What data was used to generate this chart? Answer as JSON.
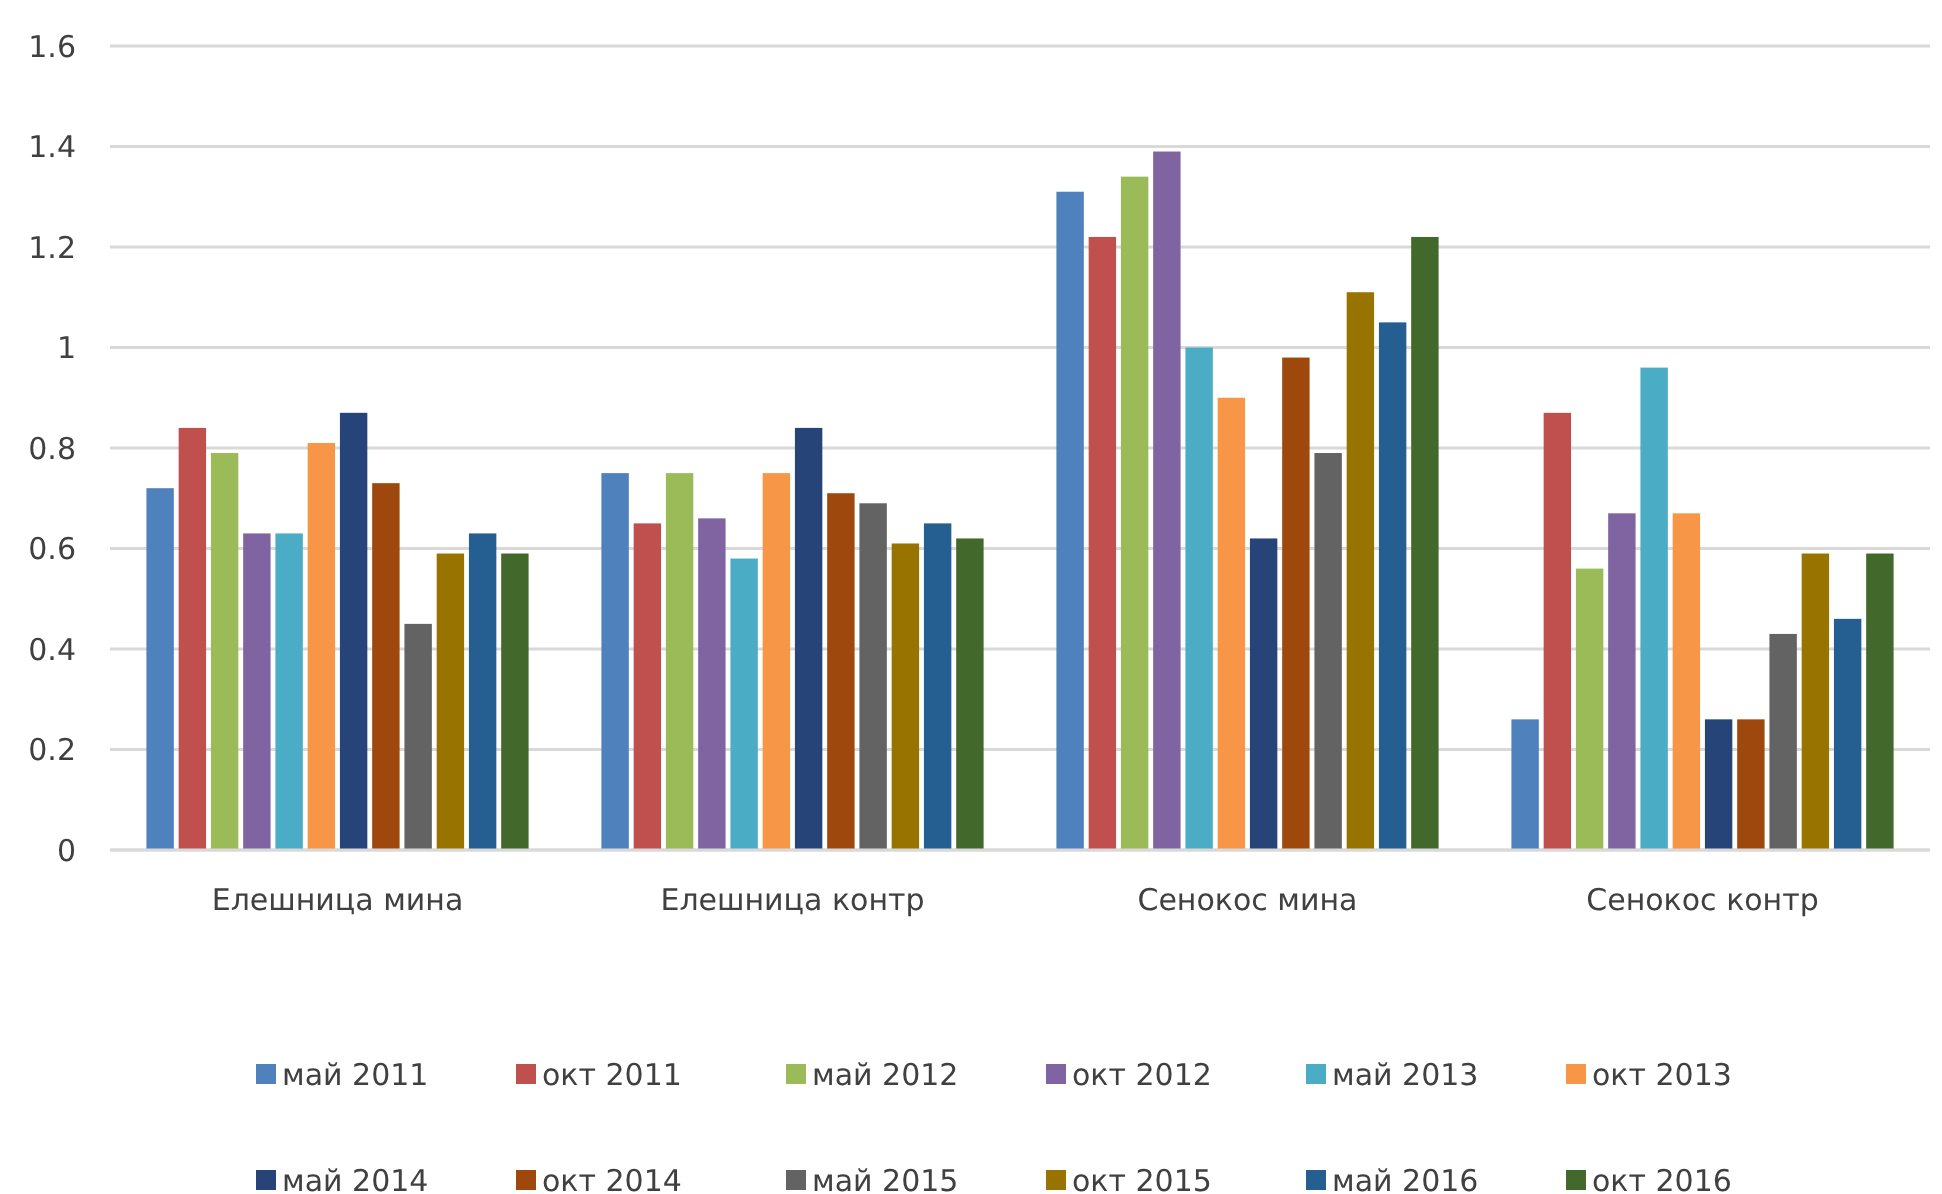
{
  "chart_data": {
    "type": "bar",
    "categories": [
      "Елешница мина",
      "Елешница контр",
      "Сенокос мина",
      "Сенокос контр"
    ],
    "series": [
      {
        "name": "май 2011",
        "color": "#4f81bd",
        "values": [
          0.72,
          0.75,
          1.31,
          0.26
        ]
      },
      {
        "name": "окт 2011",
        "color": "#c0504d",
        "values": [
          0.84,
          0.65,
          1.22,
          0.87
        ]
      },
      {
        "name": "май 2012",
        "color": "#9bbb59",
        "values": [
          0.79,
          0.75,
          1.34,
          0.56
        ]
      },
      {
        "name": "окт 2012",
        "color": "#8064a2",
        "values": [
          0.63,
          0.66,
          1.39,
          0.67
        ]
      },
      {
        "name": "май 2013",
        "color": "#4bacc6",
        "values": [
          0.63,
          0.58,
          1.0,
          0.96
        ]
      },
      {
        "name": "окт 2013",
        "color": "#f79646",
        "values": [
          0.81,
          0.75,
          0.9,
          0.67
        ]
      },
      {
        "name": "май 2014",
        "color": "#264478",
        "values": [
          0.87,
          0.84,
          0.62,
          0.26
        ]
      },
      {
        "name": "окт 2014",
        "color": "#9e480e",
        "values": [
          0.73,
          0.71,
          0.98,
          0.26
        ]
      },
      {
        "name": "май 2015",
        "color": "#636363",
        "values": [
          0.45,
          0.69,
          0.79,
          0.43
        ]
      },
      {
        "name": "окт 2015",
        "color": "#997300",
        "values": [
          0.59,
          0.61,
          1.11,
          0.59
        ]
      },
      {
        "name": "май 2016",
        "color": "#255e91",
        "values": [
          0.63,
          0.65,
          1.05,
          0.46
        ]
      },
      {
        "name": "окт 2016",
        "color": "#43682b",
        "values": [
          0.59,
          0.62,
          1.22,
          0.59
        ]
      }
    ],
    "ylim": [
      0,
      1.6
    ],
    "yticks": [
      0,
      {
        "value": 0.2,
        "label": "0.2"
      },
      {
        "value": 0.4,
        "label": "0.4"
      },
      {
        "value": 0.6,
        "label": "0.6"
      },
      {
        "value": 0.8,
        "label": "0.8"
      },
      1,
      {
        "value": 1.2,
        "label": "1.2"
      },
      {
        "value": 1.4,
        "label": "1.4"
      },
      {
        "value": 1.6,
        "label": "1.6"
      }
    ],
    "grid": "y",
    "legend": "bottom"
  }
}
